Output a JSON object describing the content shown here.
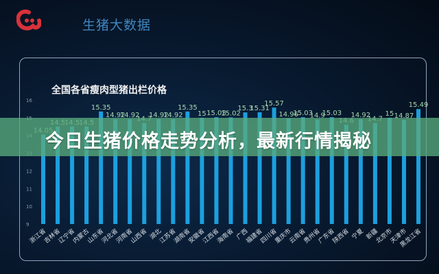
{
  "header": {
    "brand": "生猪大数据",
    "logo_icon": "red-logo-icon"
  },
  "banner": {
    "headline": "今日生猪价格走势分析，最新行情揭秘"
  },
  "colors": {
    "bar": "#1ea6e8",
    "label": "#a8d8b0",
    "banner": "#58aa7d",
    "logo": "#d8323a"
  },
  "chart_data": {
    "type": "bar",
    "title": "全国各省瘦肉型猪出栏价格",
    "categories": [
      "浙江省",
      "吉林省",
      "辽宁省",
      "内蒙古",
      "山东省",
      "河北省",
      "河南省",
      "山西省",
      "湖北",
      "江苏省",
      "湖南省",
      "安徽省",
      "江西省",
      "海南省",
      "广西",
      "福建省",
      "四川省",
      "重庆市",
      "云南省",
      "贵州省",
      "广东省",
      "陕西省",
      "宁夏",
      "新疆",
      "北京市",
      "天津市",
      "黑龙江省"
    ],
    "values": [
      14.05,
      14.5,
      14.5,
      14.5,
      15.35,
      14.92,
      14.92,
      14.7,
      14.92,
      14.92,
      15.35,
      15.0,
      15.03,
      15.02,
      15.3,
      15.31,
      15.57,
      14.96,
      15.03,
      14.9,
      15.03,
      14.6,
      14.92,
      14.7,
      15.0,
      14.87,
      15.49
    ],
    "yticks": [
      9,
      10,
      11,
      12,
      13,
      14,
      15,
      16
    ],
    "ylim": [
      9,
      16
    ],
    "grid": false
  }
}
